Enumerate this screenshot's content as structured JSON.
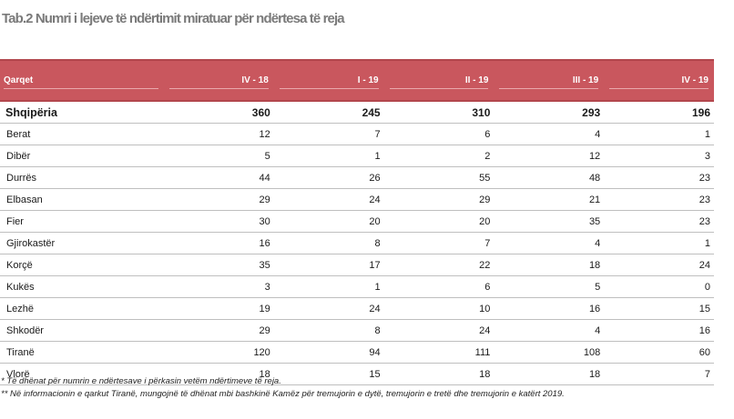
{
  "title": "Tab.2 Numri i lejeve të ndërtimit miratuar për ndërtesa të reja",
  "header": {
    "name_col": "Qarqet",
    "periods": [
      "IV - 18",
      "I - 19",
      "II - 19",
      "III - 19",
      "IV - 19"
    ]
  },
  "rows": [
    {
      "name": "Shqipëria",
      "values": [
        "360",
        "245",
        "310",
        "293",
        "196"
      ],
      "total": true
    },
    {
      "name": "Berat",
      "values": [
        "12",
        "7",
        "6",
        "4",
        "1"
      ]
    },
    {
      "name": "Dibër",
      "values": [
        "5",
        "1",
        "2",
        "12",
        "3"
      ]
    },
    {
      "name": "Durrës",
      "values": [
        "44",
        "26",
        "55",
        "48",
        "23"
      ]
    },
    {
      "name": "Elbasan",
      "values": [
        "29",
        "24",
        "29",
        "21",
        "23"
      ]
    },
    {
      "name": "Fier",
      "values": [
        "30",
        "20",
        "20",
        "35",
        "23"
      ]
    },
    {
      "name": "Gjirokastër",
      "values": [
        "16",
        "8",
        "7",
        "4",
        "1"
      ]
    },
    {
      "name": "Korçë",
      "values": [
        "35",
        "17",
        "22",
        "18",
        "24"
      ]
    },
    {
      "name": "Kukës",
      "values": [
        "3",
        "1",
        "6",
        "5",
        "0"
      ]
    },
    {
      "name": "Lezhë",
      "values": [
        "19",
        "24",
        "10",
        "16",
        "15"
      ]
    },
    {
      "name": "Shkodër",
      "values": [
        "29",
        "8",
        "24",
        "4",
        "16"
      ]
    },
    {
      "name": "Tiranë",
      "values": [
        "120",
        "94",
        "111",
        "108",
        "60"
      ]
    },
    {
      "name": "Vlorë",
      "values": [
        "18",
        "15",
        "18",
        "18",
        "7"
      ]
    }
  ],
  "footnotes": [
    "* Të dhënat për numrin e ndërtesave i përkasin vetëm ndërtimeve të reja.",
    "** Në informacionin e qarkut Tiranë, mungojnë të dhënat mbi bashkinë Kamëz për tremujorin e dytë, tremujorin e tretë dhe tremujorin e katërt 2019."
  ],
  "colors": {
    "header_bg": "#c9575e",
    "header_text": "#ffffff",
    "title_text": "#7a7a7a"
  }
}
